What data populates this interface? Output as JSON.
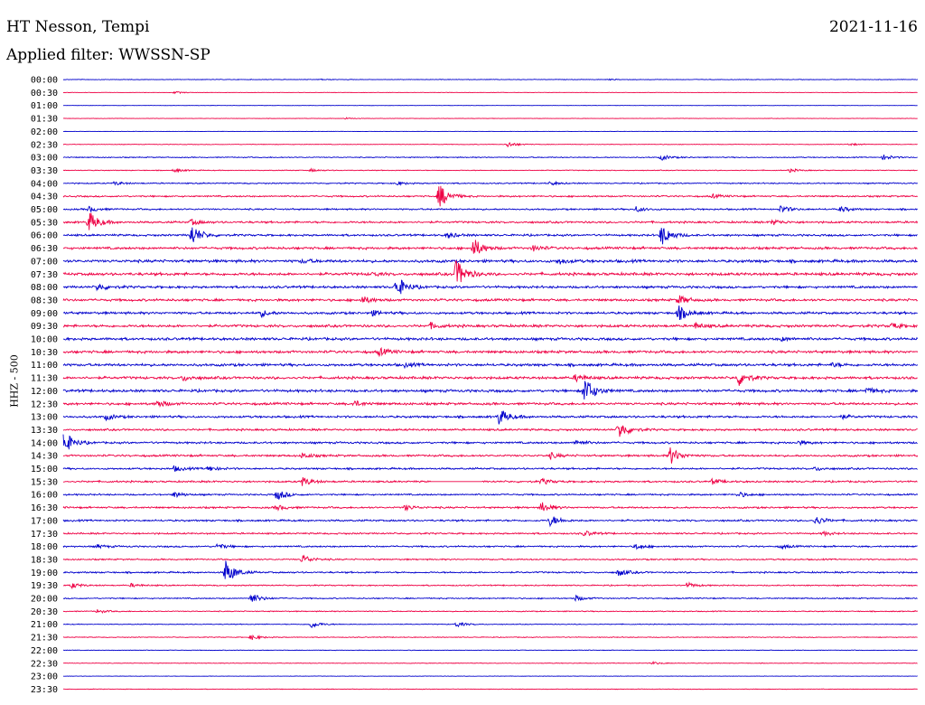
{
  "header": {
    "station": "HT Nesson, Tempi",
    "date": "2021-11-16",
    "filter": "Applied filter: WWSSN-SP"
  },
  "chart_data": {
    "type": "line",
    "ylabel": "HHZ - 500",
    "trace_colors": [
      "#0000cc",
      "#ee0044"
    ],
    "rows": [
      {
        "label": "00:00",
        "noise": 0.3,
        "events": [
          [
            0.3,
            0.6
          ],
          [
            0.64,
            0.5
          ]
        ]
      },
      {
        "label": "00:30",
        "noise": 0.2,
        "events": [
          [
            0.13,
            1.2
          ]
        ]
      },
      {
        "label": "01:00",
        "noise": 0.15,
        "events": []
      },
      {
        "label": "01:30",
        "noise": 0.2,
        "events": [
          [
            0.33,
            1.0
          ]
        ]
      },
      {
        "label": "02:00",
        "noise": 0.15,
        "events": []
      },
      {
        "label": "02:30",
        "noise": 0.3,
        "events": [
          [
            0.52,
            3.0
          ],
          [
            0.92,
            1.2
          ]
        ]
      },
      {
        "label": "03:00",
        "noise": 0.5,
        "events": [
          [
            0.7,
            3.0
          ],
          [
            0.96,
            3.0
          ]
        ]
      },
      {
        "label": "03:30",
        "noise": 0.4,
        "events": [
          [
            0.13,
            2.0
          ],
          [
            0.29,
            1.5
          ],
          [
            0.85,
            2.0
          ]
        ]
      },
      {
        "label": "04:00",
        "noise": 0.6,
        "events": [
          [
            0.06,
            2.0
          ],
          [
            0.39,
            2.0
          ],
          [
            0.57,
            2.0
          ]
        ]
      },
      {
        "label": "04:30",
        "noise": 0.8,
        "events": [
          [
            0.44,
            14.0
          ],
          [
            0.76,
            2.0
          ]
        ]
      },
      {
        "label": "05:00",
        "noise": 0.8,
        "events": [
          [
            0.03,
            3.0
          ],
          [
            0.67,
            3.0
          ],
          [
            0.84,
            4.0
          ],
          [
            0.91,
            3.0
          ]
        ]
      },
      {
        "label": "05:30",
        "noise": 1.0,
        "events": [
          [
            0.03,
            12.0
          ],
          [
            0.15,
            3.0
          ],
          [
            0.83,
            3.0
          ]
        ]
      },
      {
        "label": "06:00",
        "noise": 1.0,
        "events": [
          [
            0.15,
            12.0
          ],
          [
            0.45,
            3.0
          ],
          [
            0.7,
            12.0
          ]
        ]
      },
      {
        "label": "06:30",
        "noise": 1.2,
        "events": [
          [
            0.48,
            11.0
          ],
          [
            0.55,
            3.0
          ]
        ]
      },
      {
        "label": "07:00",
        "noise": 1.4,
        "events": [
          [
            0.28,
            2.0
          ],
          [
            0.58,
            3.0
          ]
        ]
      },
      {
        "label": "07:30",
        "noise": 1.4,
        "events": [
          [
            0.46,
            16.0
          ],
          [
            0.36,
            2.0
          ]
        ]
      },
      {
        "label": "08:00",
        "noise": 1.2,
        "events": [
          [
            0.04,
            4.0
          ],
          [
            0.39,
            12.0
          ]
        ]
      },
      {
        "label": "08:30",
        "noise": 1.2,
        "events": [
          [
            0.35,
            4.0
          ],
          [
            0.72,
            5.0
          ]
        ]
      },
      {
        "label": "09:00",
        "noise": 1.2,
        "events": [
          [
            0.23,
            4.0
          ],
          [
            0.36,
            3.0
          ],
          [
            0.72,
            8.0
          ]
        ]
      },
      {
        "label": "09:30",
        "noise": 1.3,
        "events": [
          [
            0.43,
            3.0
          ],
          [
            0.74,
            3.0
          ],
          [
            0.97,
            3.0
          ]
        ]
      },
      {
        "label": "10:00",
        "noise": 1.3,
        "events": [
          [
            0.84,
            2.0
          ]
        ]
      },
      {
        "label": "10:30",
        "noise": 1.3,
        "events": [
          [
            0.37,
            4.0
          ]
        ]
      },
      {
        "label": "11:00",
        "noise": 1.3,
        "events": [
          [
            0.4,
            2.0
          ],
          [
            0.9,
            2.0
          ]
        ]
      },
      {
        "label": "11:30",
        "noise": 1.3,
        "events": [
          [
            0.14,
            3.0
          ],
          [
            0.6,
            4.0
          ],
          [
            0.79,
            9.0
          ]
        ]
      },
      {
        "label": "12:00",
        "noise": 1.3,
        "events": [
          [
            0.61,
            16.0
          ],
          [
            0.94,
            3.0
          ]
        ]
      },
      {
        "label": "12:30",
        "noise": 1.2,
        "events": [
          [
            0.11,
            4.0
          ],
          [
            0.34,
            3.0
          ]
        ]
      },
      {
        "label": "13:00",
        "noise": 1.1,
        "events": [
          [
            0.05,
            3.0
          ],
          [
            0.51,
            9.0
          ],
          [
            0.91,
            2.0
          ]
        ]
      },
      {
        "label": "13:30",
        "noise": 1.0,
        "events": [
          [
            0.65,
            10.0
          ]
        ]
      },
      {
        "label": "14:00",
        "noise": 1.0,
        "events": [
          [
            0.0,
            14.0
          ],
          [
            0.6,
            3.0
          ],
          [
            0.86,
            2.0
          ]
        ]
      },
      {
        "label": "14:30",
        "noise": 1.0,
        "events": [
          [
            0.28,
            3.0
          ],
          [
            0.71,
            10.0
          ],
          [
            0.57,
            3.0
          ]
        ]
      },
      {
        "label": "15:00",
        "noise": 0.9,
        "events": [
          [
            0.13,
            3.0
          ],
          [
            0.17,
            3.0
          ],
          [
            0.88,
            2.0
          ]
        ]
      },
      {
        "label": "15:30",
        "noise": 0.9,
        "events": [
          [
            0.28,
            5.0
          ],
          [
            0.56,
            3.0
          ],
          [
            0.76,
            3.0
          ]
        ],
        "gap": [
          0.43,
          0.49
        ]
      },
      {
        "label": "16:00",
        "noise": 0.8,
        "events": [
          [
            0.13,
            3.0
          ],
          [
            0.25,
            6.0
          ],
          [
            0.79,
            3.0
          ]
        ]
      },
      {
        "label": "16:30",
        "noise": 0.9,
        "events": [
          [
            0.25,
            3.0
          ],
          [
            0.4,
            3.0
          ],
          [
            0.56,
            6.0
          ]
        ]
      },
      {
        "label": "17:00",
        "noise": 0.9,
        "events": [
          [
            0.57,
            6.0
          ],
          [
            0.88,
            5.0
          ]
        ]
      },
      {
        "label": "17:30",
        "noise": 0.8,
        "events": [
          [
            0.61,
            3.0
          ],
          [
            0.89,
            2.0
          ]
        ]
      },
      {
        "label": "18:00",
        "noise": 0.8,
        "events": [
          [
            0.04,
            2.0
          ],
          [
            0.18,
            3.0
          ],
          [
            0.67,
            3.0
          ],
          [
            0.84,
            2.0
          ]
        ]
      },
      {
        "label": "18:30",
        "noise": 0.7,
        "events": [
          [
            0.28,
            5.0
          ]
        ]
      },
      {
        "label": "19:00",
        "noise": 0.8,
        "events": [
          [
            0.19,
            14.0
          ],
          [
            0.65,
            4.0
          ]
        ]
      },
      {
        "label": "19:30",
        "noise": 0.6,
        "events": [
          [
            0.01,
            3.0
          ],
          [
            0.08,
            2.0
          ],
          [
            0.73,
            3.0
          ]
        ]
      },
      {
        "label": "20:00",
        "noise": 0.6,
        "events": [
          [
            0.22,
            6.0
          ],
          [
            0.6,
            3.0
          ]
        ]
      },
      {
        "label": "20:30",
        "noise": 0.5,
        "events": [
          [
            0.04,
            2.0
          ]
        ]
      },
      {
        "label": "21:00",
        "noise": 0.4,
        "events": [
          [
            0.29,
            4.0
          ],
          [
            0.46,
            3.0
          ]
        ]
      },
      {
        "label": "21:30",
        "noise": 0.4,
        "events": [
          [
            0.22,
            3.0
          ]
        ]
      },
      {
        "label": "22:00",
        "noise": 0.3,
        "events": []
      },
      {
        "label": "22:30",
        "noise": 0.3,
        "events": [
          [
            0.69,
            1.5
          ]
        ]
      },
      {
        "label": "23:00",
        "noise": 0.2,
        "events": []
      },
      {
        "label": "23:30",
        "noise": 0.3,
        "events": []
      }
    ]
  }
}
